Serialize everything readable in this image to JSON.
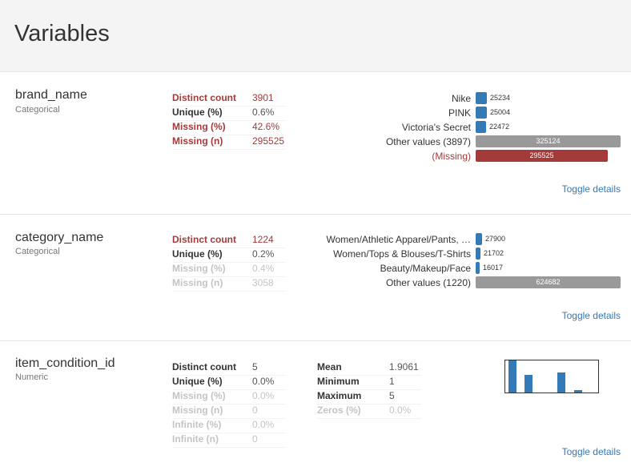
{
  "page_title": "Variables",
  "toggle_label": "Toggle details",
  "colors": {
    "alert": "#a33b3b",
    "accent": "#337ab7",
    "other_bar": "#999999"
  },
  "variables": [
    {
      "name": "brand_name",
      "type": "Categorical",
      "stats": [
        {
          "label": "Distinct count",
          "value": "3901",
          "style": "alert"
        },
        {
          "label": "Unique (%)",
          "value": "0.6%",
          "style": "normal"
        },
        {
          "label": "Missing (%)",
          "value": "42.6%",
          "style": "alert"
        },
        {
          "label": "Missing (n)",
          "value": "295525",
          "style": "alert"
        }
      ],
      "freq": [
        {
          "label": "Nike",
          "count": 25234,
          "kind": "value"
        },
        {
          "label": "PINK",
          "count": 25004,
          "kind": "value"
        },
        {
          "label": "Victoria's Secret",
          "count": 22472,
          "kind": "value"
        },
        {
          "label": "Other values (3897)",
          "count": 325124,
          "kind": "other"
        },
        {
          "label": "(Missing)",
          "count": 295525,
          "kind": "missing"
        }
      ]
    },
    {
      "name": "category_name",
      "type": "Categorical",
      "stats": [
        {
          "label": "Distinct count",
          "value": "1224",
          "style": "alert"
        },
        {
          "label": "Unique (%)",
          "value": "0.2%",
          "style": "normal"
        },
        {
          "label": "Missing (%)",
          "value": "0.4%",
          "style": "ignore"
        },
        {
          "label": "Missing (n)",
          "value": "3058",
          "style": "ignore"
        }
      ],
      "freq": [
        {
          "label": "Women/Athletic Apparel/Pants, …",
          "count": 27900,
          "kind": "value"
        },
        {
          "label": "Women/Tops & Blouses/T-Shirts",
          "count": 21702,
          "kind": "value"
        },
        {
          "label": "Beauty/Makeup/Face",
          "count": 16017,
          "kind": "value"
        },
        {
          "label": "Other values (1220)",
          "count": 624682,
          "kind": "other"
        }
      ]
    },
    {
      "name": "item_condition_id",
      "type": "Numeric",
      "stats": [
        {
          "label": "Distinct count",
          "value": "5",
          "style": "normal"
        },
        {
          "label": "Unique (%)",
          "value": "0.0%",
          "style": "normal"
        },
        {
          "label": "Missing (%)",
          "value": "0.0%",
          "style": "ignore"
        },
        {
          "label": "Missing (n)",
          "value": "0",
          "style": "ignore"
        },
        {
          "label": "Infinite (%)",
          "value": "0.0%",
          "style": "ignore"
        },
        {
          "label": "Infinite (n)",
          "value": "0",
          "style": "ignore"
        }
      ],
      "stats2": [
        {
          "label": "Mean",
          "value": "1.9061",
          "style": "normal"
        },
        {
          "label": "Minimum",
          "value": "1",
          "style": "normal"
        },
        {
          "label": "Maximum",
          "value": "5",
          "style": "normal"
        },
        {
          "label": "Zeros (%)",
          "value": "0.0%",
          "style": "ignore"
        }
      ],
      "histogram_relative": [
        1.0,
        0.55,
        0.0,
        0.63,
        0.08
      ]
    }
  ]
}
